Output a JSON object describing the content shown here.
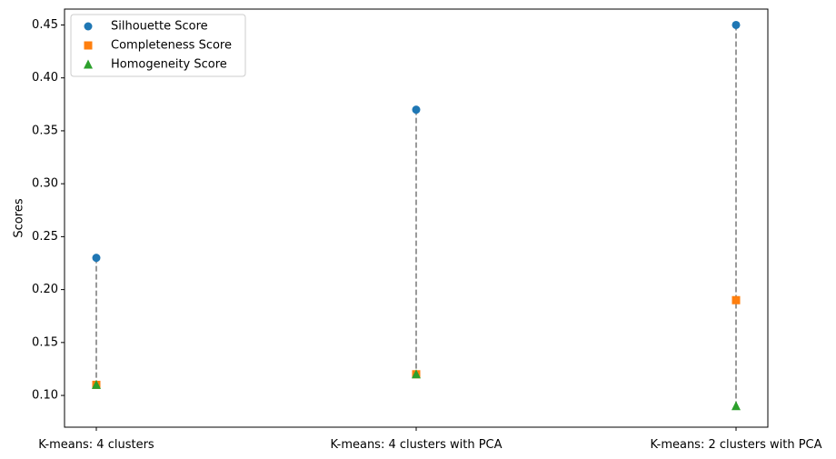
{
  "chart_data": {
    "type": "scatter",
    "categories": [
      "K-means: 4 clusters",
      "K-means: 4 clusters with PCA",
      "K-means: 2 clusters with PCA"
    ],
    "series": [
      {
        "name": "Silhouette Score",
        "values": [
          0.23,
          0.37,
          0.45
        ],
        "color": "#1f77b4",
        "marker": "circle"
      },
      {
        "name": "Completeness Score",
        "values": [
          0.11,
          0.12,
          0.19
        ],
        "color": "#ff7f0e",
        "marker": "square"
      },
      {
        "name": "Homogeneity Score",
        "values": [
          0.11,
          0.12,
          0.09
        ],
        "color": "#2ca02c",
        "marker": "triangle"
      }
    ],
    "connectors": {
      "color": "#808080",
      "style": "dashed"
    },
    "ylabel": "Scores",
    "xlabel": "",
    "ylim": [
      0.07,
      0.465
    ],
    "yticks": [
      "0.10",
      "0.15",
      "0.20",
      "0.25",
      "0.30",
      "0.35",
      "0.40",
      "0.45"
    ],
    "grid": false,
    "legend_position": "top-left"
  }
}
